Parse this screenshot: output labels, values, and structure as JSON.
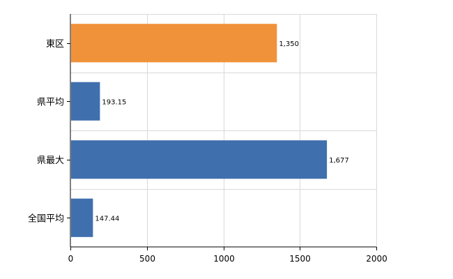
{
  "chart_data": {
    "type": "bar",
    "orientation": "horizontal",
    "categories": [
      "東区",
      "県平均",
      "県最大",
      "全国平均"
    ],
    "values": [
      1350,
      193.15,
      1677,
      147.44
    ],
    "value_labels": [
      "1,350",
      "193.15",
      "1,677",
      "147.44"
    ],
    "bar_colors": [
      "#f0923a",
      "#3f6fad",
      "#3f6fad",
      "#3f6fad"
    ],
    "xlim": [
      0,
      2000
    ],
    "x_ticks": [
      0,
      500,
      1000,
      1500,
      2000
    ],
    "x_tick_labels": [
      "0",
      "500",
      "1000",
      "1500",
      "2000"
    ],
    "grid": true,
    "title": "",
    "xlabel": "",
    "ylabel": ""
  }
}
